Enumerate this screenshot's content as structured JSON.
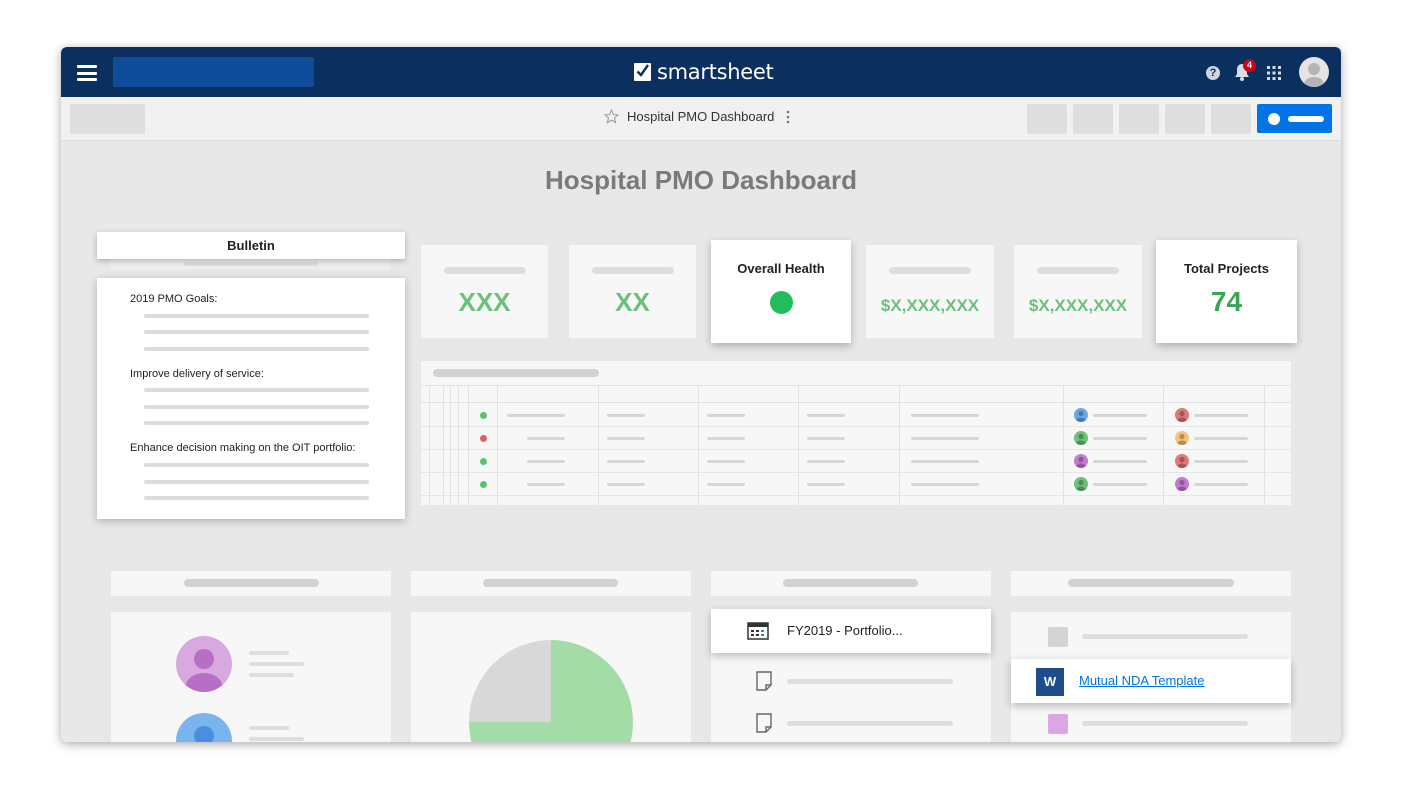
{
  "topbar": {
    "brand_name": "smartsheet",
    "notification_count": "4",
    "help_glyph": "?"
  },
  "subbar": {
    "sheet_title": "Hospital PMO Dashboard"
  },
  "dashboard": {
    "title": "Hospital PMO Dashboard",
    "bulletin": {
      "heading": "Bulletin",
      "sections": [
        "2019 PMO Goals:",
        "Improve delivery of service:",
        "Enhance decision making on the OIT portfolio:"
      ]
    },
    "kpis": {
      "kpi1_value": "XXX",
      "kpi2_value": "XX",
      "overall_health_label": "Overall Health",
      "overall_health_color": "#1fbe5a",
      "kpi4_value": "$X,XXX,XXX",
      "kpi5_value": "$X,XXX,XXX",
      "total_projects_label": "Total Projects",
      "total_projects_value": "74"
    },
    "table": {
      "row_status_colors": [
        "#5cc270",
        "#e06060",
        "#5cc270",
        "#5cc270"
      ],
      "owner_avatar_colors": [
        "#6aa8e8",
        "#6cc17a",
        "#c47ad0",
        "#6cc17a"
      ],
      "assignee_avatar_colors": [
        "#e07878",
        "#f5c47a",
        "#e07878",
        "#c47ad0"
      ]
    },
    "documents": {
      "report_name": "FY2019 - Portfolio...",
      "nda_link": "Mutual NDA Template",
      "word_glyph": "W"
    },
    "chart": {
      "green_fraction": 0.75
    }
  },
  "colors": {
    "topbar": "#0b2f5e",
    "accent_blue": "#0073e6",
    "kpi_green": "#6cc17a",
    "total_projects_green": "#3aa653"
  }
}
